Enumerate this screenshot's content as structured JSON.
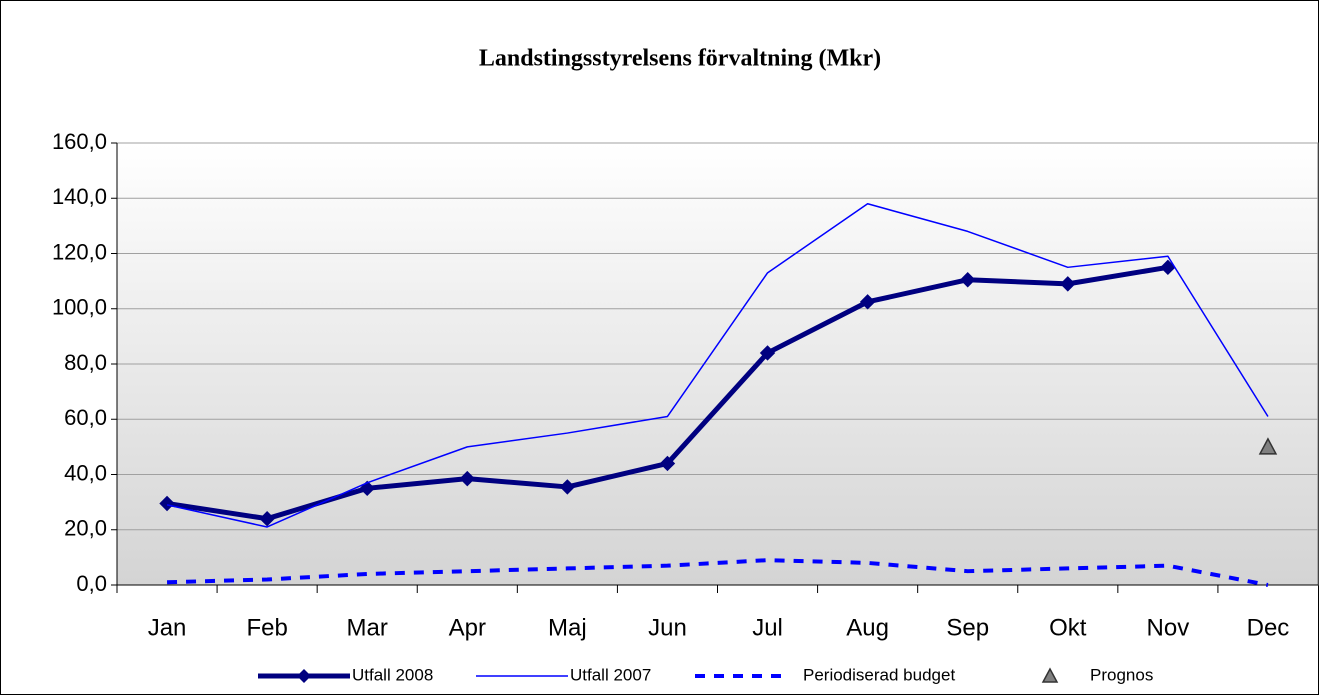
{
  "chart_data": {
    "type": "line",
    "title": "Landstingsstyrelsens förvaltning (Mkr)",
    "categories": [
      "Jan",
      "Feb",
      "Mar",
      "Apr",
      "Maj",
      "Jun",
      "Jul",
      "Aug",
      "Sep",
      "Okt",
      "Nov",
      "Dec"
    ],
    "series": [
      {
        "name": "Utfall 2008",
        "color": "#000080",
        "line_width": 5,
        "marker": "diamond",
        "values": [
          29.5,
          24,
          35,
          38.5,
          35.5,
          44,
          84,
          102.5,
          110.5,
          109,
          115,
          null
        ]
      },
      {
        "name": "Utfall 2007",
        "color": "#0000ff",
        "line_width": 1.5,
        "marker": "none",
        "values": [
          29,
          21,
          37,
          50,
          55,
          61,
          113,
          138,
          128,
          115,
          119,
          61
        ]
      },
      {
        "name": "Periodiserad budget",
        "color": "#0000ff",
        "line_width": 4,
        "marker": "none",
        "dash": true,
        "values": [
          1,
          2,
          4,
          5,
          6,
          7,
          9,
          8,
          5,
          6,
          7,
          0
        ]
      },
      {
        "name": "Prognos",
        "color": "#333333",
        "line_width": 0,
        "marker": "triangle",
        "values": [
          null,
          null,
          null,
          null,
          null,
          null,
          null,
          null,
          null,
          null,
          null,
          50
        ]
      }
    ],
    "ylim": [
      0,
      160
    ],
    "yticks": [
      {
        "value": 0,
        "label": "0,0"
      },
      {
        "value": 20,
        "label": "20,0"
      },
      {
        "value": 40,
        "label": "40,0"
      },
      {
        "value": 60,
        "label": "60,0"
      },
      {
        "value": 80,
        "label": "80,0"
      },
      {
        "value": 100,
        "label": "100,0"
      },
      {
        "value": 120,
        "label": "120,0"
      },
      {
        "value": 140,
        "label": "140,0"
      },
      {
        "value": 160,
        "label": "160,0"
      }
    ],
    "grid": true
  }
}
